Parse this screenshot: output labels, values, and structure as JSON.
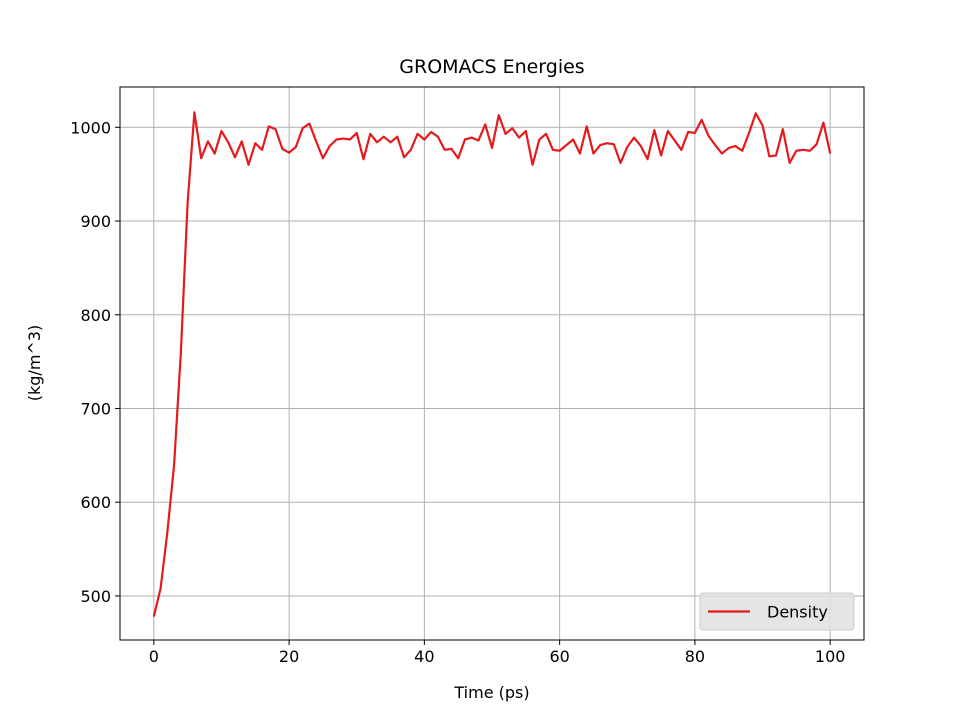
{
  "chart_data": {
    "type": "line",
    "title": "GROMACS Energies",
    "x_label": "Time (ps)",
    "y_label": "(kg/m^3)",
    "x": [
      0,
      1,
      2,
      3,
      4,
      5,
      6,
      7,
      8,
      9,
      10,
      11,
      12,
      13,
      14,
      15,
      16,
      17,
      18,
      19,
      20,
      21,
      22,
      23,
      24,
      25,
      26,
      27,
      28,
      29,
      30,
      31,
      32,
      33,
      34,
      35,
      36,
      37,
      38,
      39,
      40,
      41,
      42,
      43,
      44,
      45,
      46,
      47,
      48,
      49,
      50,
      51,
      52,
      53,
      54,
      55,
      56,
      57,
      58,
      59,
      60,
      61,
      62,
      63,
      64,
      65,
      66,
      67,
      68,
      69,
      70,
      71,
      72,
      73,
      74,
      75,
      76,
      77,
      78,
      79,
      80,
      81,
      82,
      83,
      84,
      85,
      86,
      87,
      88,
      89,
      90,
      91,
      92,
      93,
      94,
      95,
      96,
      97,
      98,
      99,
      100
    ],
    "series": [
      {
        "name": "Density",
        "color": "#e41a1c",
        "values": [
          478,
          508,
          568,
          640,
          760,
          920,
          1016,
          967,
          985,
          972,
          996,
          984,
          968,
          985,
          960,
          983,
          976,
          1001,
          998,
          977,
          973,
          979,
          999,
          1004,
          985,
          967,
          980,
          987,
          988,
          987,
          994,
          966,
          993,
          984,
          990,
          984,
          990,
          968,
          976,
          993,
          987,
          995,
          990,
          976,
          977,
          967,
          987,
          989,
          986,
          1003,
          978,
          1013,
          993,
          999,
          989,
          996,
          960,
          987,
          993,
          976,
          975,
          981,
          987,
          972,
          1001,
          972,
          981,
          983,
          982,
          962,
          979,
          989,
          980,
          966,
          997,
          970,
          996,
          986,
          976,
          995,
          994,
          1008,
          991,
          981,
          972,
          978,
          980,
          975,
          994,
          1015,
          1002,
          969,
          970,
          998,
          962,
          975,
          976,
          975,
          982,
          1005,
          972
        ]
      }
    ],
    "xlim": [
      -5,
      105
    ],
    "ylim": [
      453,
      1043
    ],
    "xticks": [
      0,
      20,
      40,
      60,
      80,
      100
    ],
    "yticks": [
      500,
      600,
      700,
      800,
      900,
      1000
    ],
    "grid": true,
    "legend": "lower right"
  }
}
